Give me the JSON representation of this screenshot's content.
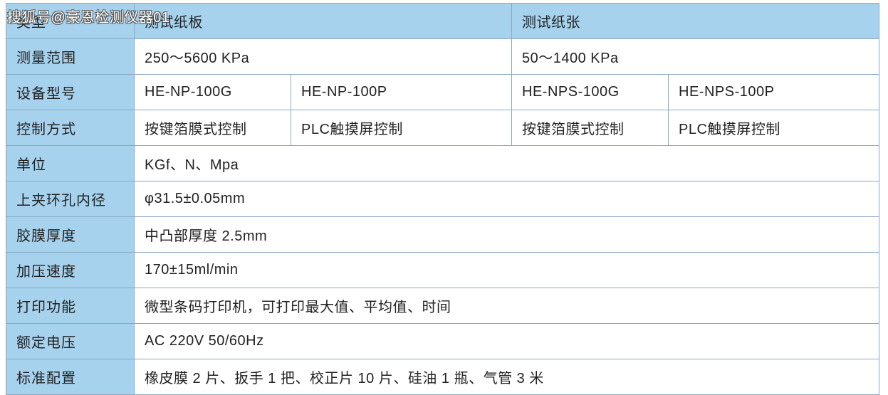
{
  "watermark": "搜狐号@豪恩检测仪器01",
  "colors": {
    "header_bg": "#a6d2ee",
    "cell_bg": "#ffffff",
    "border": "#8aa8c0",
    "text": "#222222"
  },
  "table": {
    "header": {
      "type_label": "类型",
      "cardboard": "测试纸板",
      "paper": "测试纸张"
    },
    "rows": {
      "range": {
        "label": "测量范围",
        "cardboard": "250～5600 KPa",
        "paper": "50～1400 KPa"
      },
      "model": {
        "label": "设备型号",
        "v1": "HE-NP-100G",
        "v2": "HE-NP-100P",
        "v3": "HE-NPS-100G",
        "v4": "HE-NPS-100P"
      },
      "control": {
        "label": "控制方式",
        "v1": "按键箔膜式控制",
        "v2": "PLC触摸屏控制",
        "v3": "按键箔膜式控制",
        "v4": "PLC触摸屏控制"
      },
      "unit": {
        "label": "单位",
        "value": "KGf、N、Mpa"
      },
      "clamp": {
        "label": "上夹环孔内径",
        "value": "φ31.5±0.05mm"
      },
      "film": {
        "label": "胶膜厚度",
        "value": "中凸部厚度 2.5mm"
      },
      "speed": {
        "label": "加压速度",
        "value": "170±15ml/min"
      },
      "print": {
        "label": "打印功能",
        "value": "微型条码打印机，可打印最大值、平均值、时间"
      },
      "voltage": {
        "label": "额定电压",
        "value": "AC 220V   50/60Hz"
      },
      "standard": {
        "label": "标准配置",
        "value": "橡皮膜 2 片、扳手 1 把、校正片 10 片、硅油 1 瓶、气管 3 米"
      }
    }
  }
}
